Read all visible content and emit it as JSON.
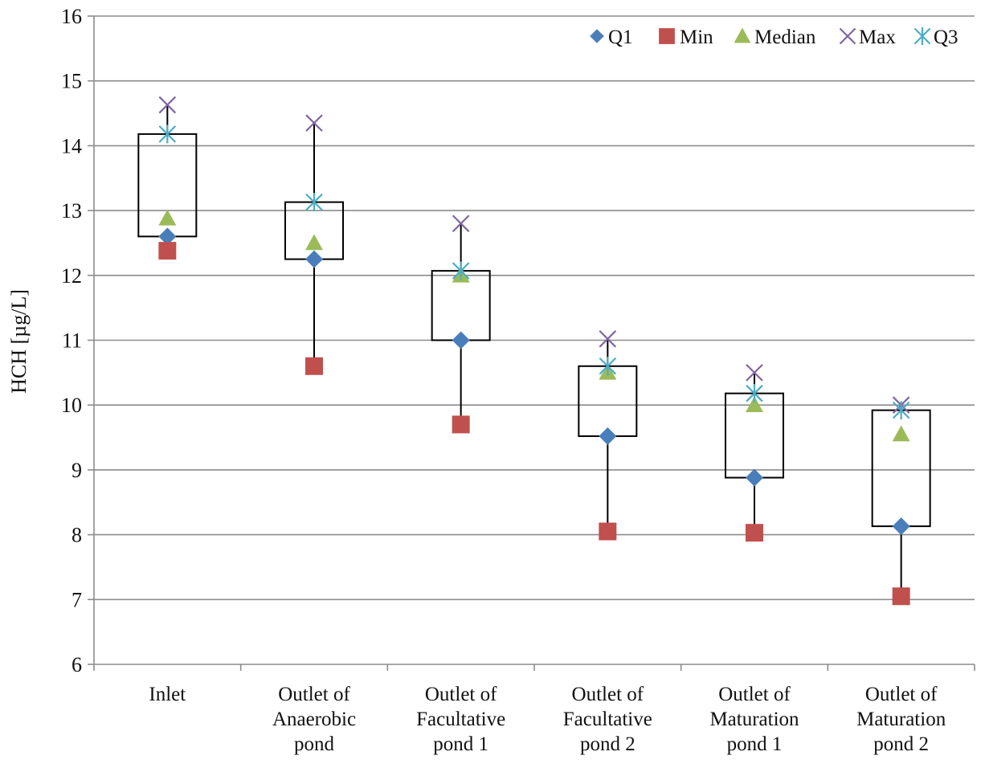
{
  "chart_data": {
    "type": "box",
    "ylabel": "HCH [µg/L]",
    "ylim": [
      6,
      16
    ],
    "yticks": [
      6,
      7,
      8,
      9,
      10,
      11,
      12,
      13,
      14,
      15,
      16
    ],
    "grid": true,
    "legend_position": "top-right",
    "categories": [
      [
        "Inlet"
      ],
      [
        "Outlet of",
        "Anaerobic",
        "pond"
      ],
      [
        "Outlet of",
        "Facultative",
        "pond 1"
      ],
      [
        "Outlet of",
        "Facultative",
        "pond 2"
      ],
      [
        "Outlet of",
        "Maturation",
        "pond 1"
      ],
      [
        "Outlet of",
        "Maturation",
        "pond 2"
      ]
    ],
    "series": [
      {
        "name": "Q1",
        "marker": "diamond",
        "color": "#4a7ebb",
        "values": [
          12.6,
          12.25,
          11.0,
          9.52,
          8.88,
          8.13
        ]
      },
      {
        "name": "Min",
        "marker": "square",
        "color": "#c0504d",
        "values": [
          12.38,
          10.6,
          9.7,
          8.05,
          8.03,
          7.05
        ]
      },
      {
        "name": "Median",
        "marker": "triangle",
        "color": "#9bbb59",
        "values": [
          12.88,
          12.5,
          12.0,
          10.5,
          10.0,
          9.55
        ]
      },
      {
        "name": "Max",
        "marker": "x",
        "color": "#8064a2",
        "values": [
          14.63,
          14.35,
          12.8,
          11.02,
          10.5,
          10.0
        ]
      },
      {
        "name": "Q3",
        "marker": "star",
        "color": "#4bacc6",
        "values": [
          14.18,
          13.13,
          12.07,
          10.6,
          10.18,
          9.92
        ]
      }
    ]
  }
}
